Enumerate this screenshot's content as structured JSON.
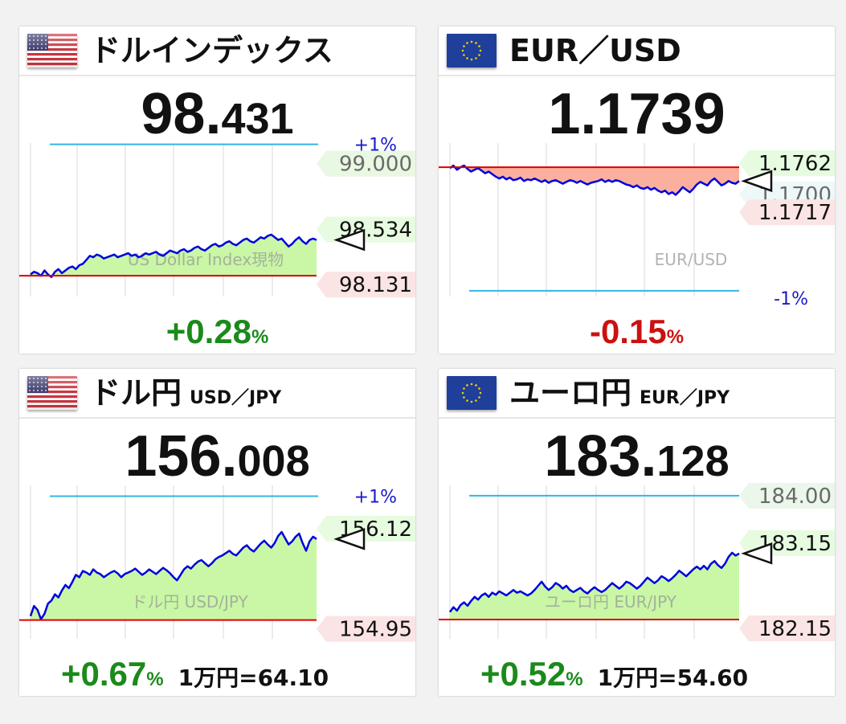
{
  "colors": {
    "positive": "#1b8a1b",
    "negative": "#cc1111",
    "area_up": "#c9f7a5",
    "area_down": "#fbb09d",
    "series": "#0000dd",
    "ref_line": "#dd0000",
    "band_line": "#33b5e5"
  },
  "panels": [
    {
      "id": "dxy",
      "flag": "us-flag",
      "title": "ドルインデックス",
      "subtitle": "",
      "price_int": "98.",
      "price_dec": "431",
      "change": "+0.28",
      "change_unit": "%",
      "change_dir": "up",
      "conversion": "",
      "watermark": "US Dollar Index現物",
      "pct_band": "+1%",
      "band_value": "99.000",
      "high_label": "98.534",
      "low_label": "98.131",
      "extra_label": "",
      "ref_value": 98.16,
      "chart_data": {
        "type": "line",
        "ylim": [
          98.04,
          99.16
        ],
        "y_ref": 98.16,
        "band": 99.15,
        "values": [
          98.17,
          98.19,
          98.18,
          98.16,
          98.2,
          98.17,
          98.15,
          98.19,
          98.21,
          98.18,
          98.2,
          98.22,
          98.23,
          98.21,
          98.24,
          98.25,
          98.28,
          98.31,
          98.3,
          98.32,
          98.31,
          98.29,
          98.3,
          98.31,
          98.32,
          98.3,
          98.31,
          98.32,
          98.33,
          98.31,
          98.32,
          98.3,
          98.31,
          98.33,
          98.32,
          98.33,
          98.34,
          98.32,
          98.31,
          98.33,
          98.35,
          98.34,
          98.33,
          98.35,
          98.36,
          98.34,
          98.35,
          98.37,
          98.38,
          98.36,
          98.35,
          98.37,
          98.39,
          98.4,
          98.38,
          98.39,
          98.41,
          98.42,
          98.4,
          98.39,
          98.41,
          98.43,
          98.44,
          98.42,
          98.41,
          98.43,
          98.45,
          98.44,
          98.46,
          98.47,
          98.45,
          98.43,
          98.44,
          98.41,
          98.38,
          98.4,
          98.43,
          98.45,
          98.42,
          98.4,
          98.43,
          98.44,
          98.43
        ]
      }
    },
    {
      "id": "eurusd",
      "flag": "eu-flag",
      "title": "EUR／USD",
      "subtitle": "",
      "price_int": "1.1739",
      "price_dec": "",
      "change": "-0.15",
      "change_unit": "%",
      "change_dir": "down",
      "conversion": "",
      "watermark": "EUR/USD",
      "pct_band": "-1%",
      "band_value": "",
      "high_label": "1.1762",
      "low_label": "1.1717",
      "extra_label": "1.1700",
      "ref_value": 1.176,
      "chart_data": {
        "type": "line",
        "ylim": [
          1.1616,
          1.1788
        ],
        "y_ref": 1.176,
        "band": 1.1617,
        "values": [
          1.1759,
          1.1762,
          1.1757,
          1.176,
          1.1762,
          1.1758,
          1.1755,
          1.1757,
          1.1759,
          1.1756,
          1.1753,
          1.1755,
          1.1752,
          1.1749,
          1.1747,
          1.1749,
          1.1746,
          1.1748,
          1.1745,
          1.1746,
          1.1748,
          1.1744,
          1.1746,
          1.1745,
          1.1747,
          1.1745,
          1.1743,
          1.1745,
          1.1742,
          1.1744,
          1.1745,
          1.1743,
          1.1741,
          1.1743,
          1.1745,
          1.1744,
          1.1742,
          1.1744,
          1.1742,
          1.174,
          1.1742,
          1.1743,
          1.1744,
          1.1746,
          1.1743,
          1.1745,
          1.1743,
          1.1745,
          1.1744,
          1.1742,
          1.174,
          1.1739,
          1.1737,
          1.1739,
          1.1736,
          1.1735,
          1.1737,
          1.1734,
          1.1736,
          1.1733,
          1.1731,
          1.1733,
          1.1729,
          1.1731,
          1.1728,
          1.1732,
          1.1737,
          1.1734,
          1.1731,
          1.1735,
          1.174,
          1.1743,
          1.1741,
          1.1739,
          1.1744,
          1.1747,
          1.1743,
          1.1739,
          1.1741,
          1.1744,
          1.1742,
          1.1741,
          1.1744
        ]
      }
    },
    {
      "id": "usdjpy",
      "flag": "us-flag",
      "title": "ドル円",
      "subtitle": "USD／JPY",
      "price_int": "156.",
      "price_dec": "008",
      "change": "+0.67",
      "change_unit": "%",
      "change_dir": "up",
      "conversion": "1万円=64.10",
      "watermark": "ドル円 USD/JPY",
      "pct_band": "+1%",
      "band_value": "",
      "high_label": "156.12",
      "low_label": "154.95",
      "extra_label": "",
      "ref_value": 154.97,
      "chart_data": {
        "type": "line",
        "ylim": [
          154.79,
          156.7
        ],
        "y_ref": 154.97,
        "band": 156.56,
        "values": [
          155.02,
          155.15,
          155.1,
          154.98,
          155.05,
          155.18,
          155.22,
          155.3,
          155.26,
          155.35,
          155.42,
          155.38,
          155.46,
          155.55,
          155.52,
          155.6,
          155.58,
          155.55,
          155.62,
          155.58,
          155.56,
          155.52,
          155.55,
          155.58,
          155.6,
          155.57,
          155.52,
          155.56,
          155.58,
          155.6,
          155.63,
          155.59,
          155.55,
          155.58,
          155.62,
          155.59,
          155.56,
          155.6,
          155.64,
          155.61,
          155.57,
          155.52,
          155.48,
          155.55,
          155.62,
          155.66,
          155.63,
          155.68,
          155.72,
          155.74,
          155.7,
          155.66,
          155.7,
          155.75,
          155.78,
          155.8,
          155.83,
          155.86,
          155.82,
          155.8,
          155.85,
          155.9,
          155.93,
          155.88,
          155.85,
          155.9,
          155.95,
          155.99,
          155.94,
          155.9,
          155.96,
          156.05,
          156.1,
          156.02,
          155.94,
          155.98,
          156.04,
          156.08,
          155.96,
          155.86,
          155.98,
          156.04,
          156.01
        ]
      }
    },
    {
      "id": "eurjpy",
      "flag": "eu-flag",
      "title": "ユーロ円",
      "subtitle": "EUR／JPY",
      "price_int": "183.",
      "price_dec": "128",
      "change": "+0.52",
      "change_unit": "%",
      "change_dir": "up",
      "conversion": "1万円=54.60",
      "watermark": "ユーロ円 EUR/JPY",
      "pct_band": "",
      "band_value": "184.00",
      "high_label": "183.15",
      "low_label": "182.15",
      "extra_label": "",
      "ref_value": 182.17,
      "chart_data": {
        "type": "line",
        "ylim": [
          181.96,
          184.12
        ],
        "y_ref": 182.17,
        "band": 183.97,
        "values": [
          182.28,
          182.35,
          182.3,
          182.38,
          182.42,
          182.37,
          182.44,
          182.5,
          182.46,
          182.52,
          182.55,
          182.5,
          182.56,
          182.53,
          182.58,
          182.55,
          182.52,
          182.56,
          182.6,
          182.56,
          182.58,
          182.55,
          182.52,
          182.55,
          182.6,
          182.66,
          182.72,
          182.65,
          182.6,
          182.64,
          182.7,
          182.67,
          182.62,
          182.66,
          182.6,
          182.57,
          182.6,
          182.63,
          182.58,
          182.55,
          182.6,
          182.64,
          182.6,
          182.57,
          182.6,
          182.65,
          182.7,
          182.66,
          182.62,
          182.66,
          182.72,
          182.7,
          182.66,
          182.62,
          182.66,
          182.72,
          182.78,
          182.74,
          182.7,
          182.74,
          182.8,
          182.77,
          182.73,
          182.77,
          182.82,
          182.88,
          182.84,
          182.8,
          182.85,
          182.9,
          182.94,
          182.9,
          182.95,
          182.9,
          182.98,
          183.02,
          182.96,
          182.92,
          182.98,
          183.08,
          183.14,
          183.1,
          183.13
        ]
      }
    }
  ]
}
